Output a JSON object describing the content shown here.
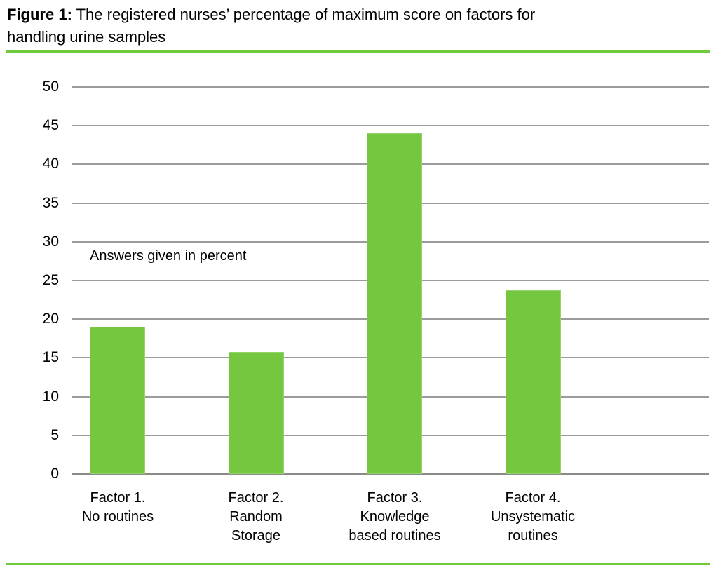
{
  "caption": {
    "label": "Figure 1:",
    "line1_rest": " The registered nurses’ percentage of maximum score on factors for",
    "line2": "handling urine samples"
  },
  "chart_data": {
    "type": "bar",
    "title": "Figure 1: The registered nurses’ percentage of maximum score on factors for handling urine samples",
    "categories": [
      "Factor 1.\nNo routines",
      "Factor 2.\nRandom\nStorage",
      "Factor 3.\nKnowledge\nbased routines",
      "Factor 4.\nUnsystematic\nroutines"
    ],
    "values": [
      19,
      15.8,
      44,
      23.7
    ],
    "annotation": "Answers given in percent",
    "xlabel": "",
    "ylabel": "",
    "ylim": [
      0,
      50
    ],
    "ytick_step": 5,
    "yticks": [
      0,
      5,
      10,
      15,
      20,
      25,
      30,
      35,
      40,
      45,
      50
    ],
    "grid": true,
    "legend": "none",
    "bar_color": "#74c73f",
    "bar_edge_color": "#93d569",
    "gridline_color": "#9b9b9b",
    "axis_line_color": "#8a8a8a",
    "divider_color": "#6fca3e"
  }
}
